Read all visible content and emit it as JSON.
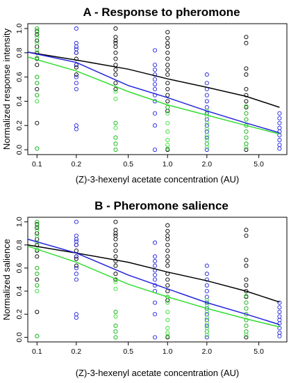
{
  "chart_data": [
    {
      "type": "scatter",
      "title": "A - Response to pheromone",
      "xlabel": "(Z)-3-hexenyl acetate concentration (AU)",
      "ylabel": "Normalized response intensity",
      "x_scale": "log",
      "x_ticks": [
        0.1,
        0.2,
        0.5,
        1.0,
        2.0,
        5.0
      ],
      "x_tick_labels": [
        "0.1",
        "0.2",
        "0.5",
        "1.0",
        "2.0",
        "5.0"
      ],
      "y_ticks": [
        0.0,
        0.2,
        0.4,
        0.6,
        0.8,
        1.0
      ],
      "y_tick_labels": [
        "0.0",
        "0.2",
        "0.4",
        "0.6",
        "0.8",
        "1.0"
      ],
      "xlim": [
        0.085,
        8.2
      ],
      "ylim": [
        -0.04,
        1.04
      ],
      "grid": false,
      "series": [
        {
          "color": "#000000",
          "points": [
            {
              "x": 0.1,
              "ys": [
                1.0,
                0.98,
                0.95,
                0.9,
                0.85,
                0.8,
                0.75,
                0.7,
                0.6,
                0.55,
                0.5,
                0.45,
                0.22,
                0.01
              ]
            },
            {
              "x": 0.2,
              "ys": [
                0.8,
                0.75,
                0.7,
                0.68,
                0.62
              ]
            },
            {
              "x": 0.4,
              "ys": [
                1.0,
                0.93,
                0.9,
                0.88,
                0.85,
                0.8,
                0.75,
                0.7,
                0.66,
                0.62,
                0.55,
                0.5,
                0.22,
                0.1,
                0.05,
                0.0
              ]
            },
            {
              "x": 1.0,
              "ys": [
                0.97,
                0.92,
                0.88,
                0.85,
                0.8,
                0.75,
                0.7,
                0.66,
                0.62,
                0.55,
                0.5,
                0.45,
                0.4,
                0.35,
                0.32,
                0.0
              ]
            },
            {
              "x": 4.0,
              "ys": [
                0.93,
                0.88,
                0.67,
                0.62,
                0.5,
                0.45,
                0.4,
                0.35,
                0.3,
                0.25,
                0.2,
                0.15,
                0.1,
                0.05,
                0.0
              ]
            }
          ],
          "fit": [
            {
              "x": 0.085,
              "y": 0.805
            },
            {
              "x": 0.2,
              "y": 0.74
            },
            {
              "x": 0.5,
              "y": 0.665
            },
            {
              "x": 1.0,
              "y": 0.585
            },
            {
              "x": 2.0,
              "y": 0.515
            },
            {
              "x": 4.0,
              "y": 0.44
            },
            {
              "x": 7.2,
              "y": 0.35
            }
          ]
        },
        {
          "color": "#2222dd",
          "points": [
            {
              "x": 0.2,
              "ys": [
                1.0,
                0.88,
                0.85,
                0.83,
                0.8,
                0.7,
                0.6,
                0.55,
                0.5,
                0.2,
                0.17
              ]
            },
            {
              "x": 0.8,
              "ys": [
                0.82,
                0.7,
                0.66,
                0.62,
                0.58,
                0.54,
                0.5,
                0.45,
                0.4,
                0.3,
                0.2,
                0.0
              ]
            },
            {
              "x": 2.0,
              "ys": [
                0.62,
                0.55,
                0.5,
                0.45,
                0.4,
                0.35,
                0.3,
                0.25,
                0.2,
                0.15,
                0.1,
                0.05,
                0.0
              ]
            },
            {
              "x": 7.2,
              "ys": [
                0.3,
                0.26,
                0.22,
                0.18,
                0.15,
                0.12,
                0.08,
                0.04,
                0.01
              ]
            }
          ],
          "fit": [
            {
              "x": 0.085,
              "y": 0.805
            },
            {
              "x": 0.2,
              "y": 0.72
            },
            {
              "x": 0.5,
              "y": 0.53
            },
            {
              "x": 1.0,
              "y": 0.43
            },
            {
              "x": 2.0,
              "y": 0.32
            },
            {
              "x": 4.0,
              "y": 0.22
            },
            {
              "x": 7.2,
              "y": 0.14
            }
          ]
        },
        {
          "color": "#33dd33",
          "points": [
            {
              "x": 0.1,
              "ys": [
                1.0,
                0.97,
                0.93,
                0.88,
                0.82,
                0.76,
                0.6,
                0.55,
                0.45,
                0.4,
                0.01
              ]
            },
            {
              "x": 0.4,
              "ys": [
                0.48,
                0.42,
                0.22,
                0.18,
                0.1,
                0.05,
                0.0
              ]
            },
            {
              "x": 1.0,
              "ys": [
                0.35,
                0.3,
                0.22,
                0.15,
                0.08,
                0.04,
                0.01
              ]
            },
            {
              "x": 2.0,
              "ys": [
                0.32,
                0.28,
                0.22,
                0.17,
                0.12,
                0.08,
                0.05,
                0.02
              ]
            },
            {
              "x": 4.0,
              "ys": [
                0.36,
                0.3,
                0.25,
                0.2,
                0.15,
                0.1,
                0.05,
                0.02
              ]
            }
          ],
          "fit": [
            {
              "x": 0.085,
              "y": 0.765
            },
            {
              "x": 0.2,
              "y": 0.65
            },
            {
              "x": 0.5,
              "y": 0.48
            },
            {
              "x": 1.0,
              "y": 0.37
            },
            {
              "x": 2.0,
              "y": 0.285
            },
            {
              "x": 4.0,
              "y": 0.2
            },
            {
              "x": 7.2,
              "y": 0.13
            }
          ]
        }
      ]
    },
    {
      "type": "scatter",
      "title": "B - Pheromone salience",
      "xlabel": "(Z)-3-hexenyl acetate concentration (AU)",
      "ylabel": "Normalized salience",
      "x_scale": "log",
      "x_ticks": [
        0.1,
        0.2,
        0.5,
        1.0,
        2.0,
        5.0
      ],
      "x_tick_labels": [
        "0.1",
        "0.2",
        "0.5",
        "1.0",
        "2.0",
        "5.0"
      ],
      "y_ticks": [
        0.0,
        0.2,
        0.4,
        0.6,
        0.8,
        1.0
      ],
      "y_tick_labels": [
        "0.0",
        "0.2",
        "0.4",
        "0.6",
        "0.8",
        "1.0"
      ],
      "xlim": [
        0.085,
        8.2
      ],
      "ylim": [
        -0.04,
        1.04
      ],
      "grid": false,
      "series": [
        {
          "color": "#000000",
          "points": [
            {
              "x": 0.1,
              "ys": [
                1.0,
                0.98,
                0.95,
                0.9,
                0.85,
                0.8,
                0.75,
                0.7,
                0.6,
                0.55,
                0.5,
                0.45,
                0.22,
                0.01
              ]
            },
            {
              "x": 0.2,
              "ys": [
                0.8,
                0.75,
                0.7,
                0.68,
                0.62
              ]
            },
            {
              "x": 0.4,
              "ys": [
                1.0,
                0.93,
                0.9,
                0.88,
                0.85,
                0.8,
                0.75,
                0.7,
                0.66,
                0.62,
                0.55,
                0.5,
                0.22,
                0.1,
                0.05,
                0.0
              ]
            },
            {
              "x": 1.0,
              "ys": [
                0.97,
                0.92,
                0.88,
                0.85,
                0.8,
                0.75,
                0.7,
                0.66,
                0.62,
                0.55,
                0.5,
                0.45,
                0.4,
                0.35,
                0.32,
                0.0
              ]
            },
            {
              "x": 4.0,
              "ys": [
                0.93,
                0.88,
                0.67,
                0.62,
                0.5,
                0.45,
                0.4,
                0.35,
                0.3,
                0.25,
                0.2,
                0.15,
                0.1,
                0.05,
                0.0
              ]
            }
          ],
          "fit": [
            {
              "x": 0.085,
              "y": 0.8
            },
            {
              "x": 0.2,
              "y": 0.73
            },
            {
              "x": 0.5,
              "y": 0.65
            },
            {
              "x": 1.0,
              "y": 0.565
            },
            {
              "x": 2.0,
              "y": 0.49
            },
            {
              "x": 4.0,
              "y": 0.4
            },
            {
              "x": 7.2,
              "y": 0.305
            }
          ]
        },
        {
          "color": "#2222dd",
          "points": [
            {
              "x": 0.2,
              "ys": [
                1.0,
                0.88,
                0.85,
                0.83,
                0.8,
                0.7,
                0.6,
                0.55,
                0.5,
                0.2,
                0.17
              ]
            },
            {
              "x": 0.8,
              "ys": [
                0.82,
                0.7,
                0.66,
                0.62,
                0.58,
                0.54,
                0.5,
                0.45,
                0.4,
                0.3,
                0.2,
                0.0
              ]
            },
            {
              "x": 2.0,
              "ys": [
                0.62,
                0.55,
                0.5,
                0.45,
                0.4,
                0.35,
                0.3,
                0.25,
                0.2,
                0.15,
                0.1,
                0.05,
                0.0
              ]
            },
            {
              "x": 7.2,
              "ys": [
                0.3,
                0.26,
                0.22,
                0.18,
                0.15,
                0.12,
                0.08,
                0.04,
                0.01
              ]
            }
          ],
          "fit": [
            {
              "x": 0.085,
              "y": 0.85
            },
            {
              "x": 0.2,
              "y": 0.73
            },
            {
              "x": 0.5,
              "y": 0.54
            },
            {
              "x": 1.0,
              "y": 0.42
            },
            {
              "x": 2.0,
              "y": 0.3
            },
            {
              "x": 4.0,
              "y": 0.2
            },
            {
              "x": 7.2,
              "y": 0.11
            }
          ]
        },
        {
          "color": "#33dd33",
          "points": [
            {
              "x": 0.1,
              "ys": [
                1.0,
                0.97,
                0.93,
                0.88,
                0.82,
                0.76,
                0.6,
                0.55,
                0.45,
                0.4,
                0.01
              ]
            },
            {
              "x": 0.4,
              "ys": [
                0.48,
                0.42,
                0.22,
                0.18,
                0.1,
                0.05,
                0.0
              ]
            },
            {
              "x": 1.0,
              "ys": [
                0.35,
                0.3,
                0.22,
                0.15,
                0.08,
                0.04,
                0.01
              ]
            },
            {
              "x": 2.0,
              "ys": [
                0.32,
                0.28,
                0.22,
                0.17,
                0.12,
                0.08,
                0.05,
                0.02
              ]
            },
            {
              "x": 4.0,
              "ys": [
                0.36,
                0.3,
                0.25,
                0.2,
                0.15,
                0.1,
                0.05,
                0.02
              ]
            }
          ],
          "fit": [
            {
              "x": 0.085,
              "y": 0.79
            },
            {
              "x": 0.2,
              "y": 0.65
            },
            {
              "x": 0.5,
              "y": 0.46
            },
            {
              "x": 1.0,
              "y": 0.35
            },
            {
              "x": 2.0,
              "y": 0.25
            },
            {
              "x": 4.0,
              "y": 0.16
            },
            {
              "x": 7.2,
              "y": 0.09
            }
          ]
        }
      ]
    }
  ]
}
